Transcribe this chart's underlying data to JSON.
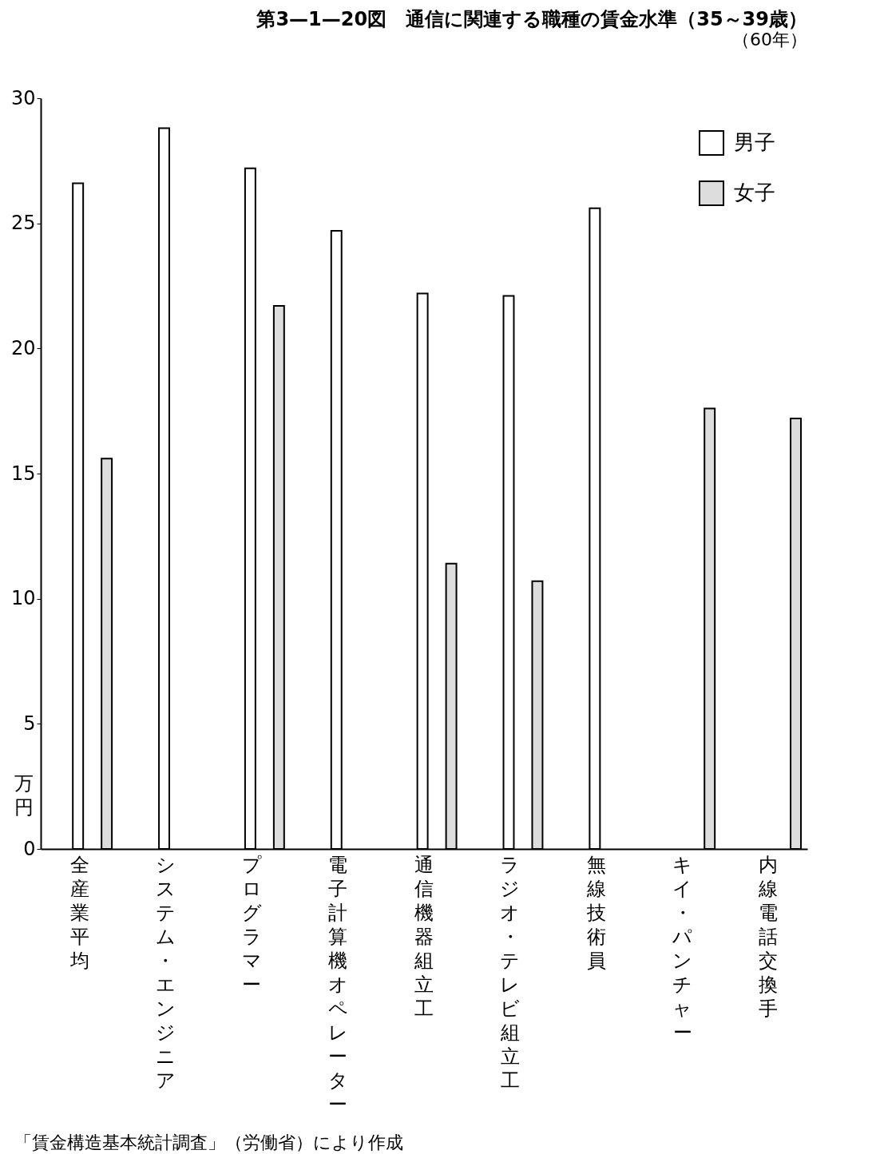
{
  "chart_data": {
    "type": "bar",
    "title": "第3—1—20図　通信に関連する職種の賃金水準（35～39歳）",
    "subtitle": "（60年）",
    "ylabel": "万円",
    "categories": [
      "全産業平均",
      "システム・エンジニア",
      "プログラマー",
      "電子計算機オペレーター",
      "通信機器組立工",
      "ラジオ・テレビ組立工",
      "無線技術員",
      "キイ・パンチャー",
      "内線電話交換手"
    ],
    "series": [
      {
        "name": "男子",
        "color": "#ffffff",
        "values": [
          26.6,
          28.8,
          27.2,
          24.7,
          22.2,
          22.1,
          25.6,
          null,
          null
        ]
      },
      {
        "name": "女子",
        "color": "#dddddd",
        "values": [
          15.6,
          null,
          21.7,
          null,
          11.4,
          10.7,
          null,
          17.6,
          17.2
        ]
      }
    ],
    "ylim": [
      0,
      30
    ],
    "yticks": [
      0,
      5,
      10,
      15,
      20,
      25,
      30
    ],
    "grid": false,
    "legend": "top right",
    "annotations": [
      "「賃金構造基本統計調査」（労働省）により作成"
    ]
  }
}
